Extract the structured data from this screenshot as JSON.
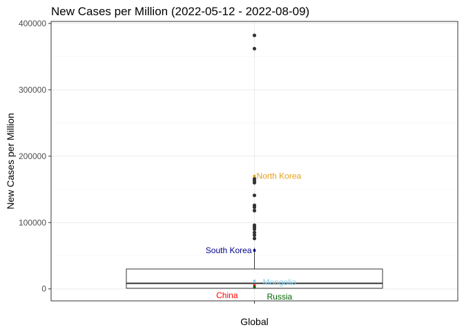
{
  "chart_data": {
    "type": "box",
    "title": "New Cases per Million (2022-05-12 - 2022-08-09)",
    "xlabel": "",
    "ylabel": "New Cases per Million",
    "categories": [
      "Global"
    ],
    "ylim": [
      -18000,
      403000
    ],
    "yticks": [
      0,
      100000,
      200000,
      300000,
      400000
    ],
    "ytick_labels": [
      "0",
      "100000",
      "200000",
      "300000",
      "400000"
    ],
    "grid": true,
    "box": {
      "q1": 1000,
      "median": 8500,
      "q3": 30000,
      "whisker_low": 0,
      "whisker_high": 62000
    },
    "outliers": [
      382000,
      362000,
      166000,
      163000,
      160000,
      141000,
      126000,
      123000,
      118000,
      96000,
      93000,
      90000,
      85000,
      81000,
      76000
    ],
    "highlights": [
      {
        "label": "North Korea",
        "value": 170000,
        "color": "#e6a114"
      },
      {
        "label": "South Korea",
        "value": 58000,
        "color": "#00008b"
      },
      {
        "label": "Mongolia",
        "value": 12000,
        "color": "#87ceeb"
      },
      {
        "label": "China",
        "value": 5000,
        "color": "#ff0000"
      },
      {
        "label": "Russia",
        "value": 3000,
        "color": "#006400"
      }
    ]
  }
}
